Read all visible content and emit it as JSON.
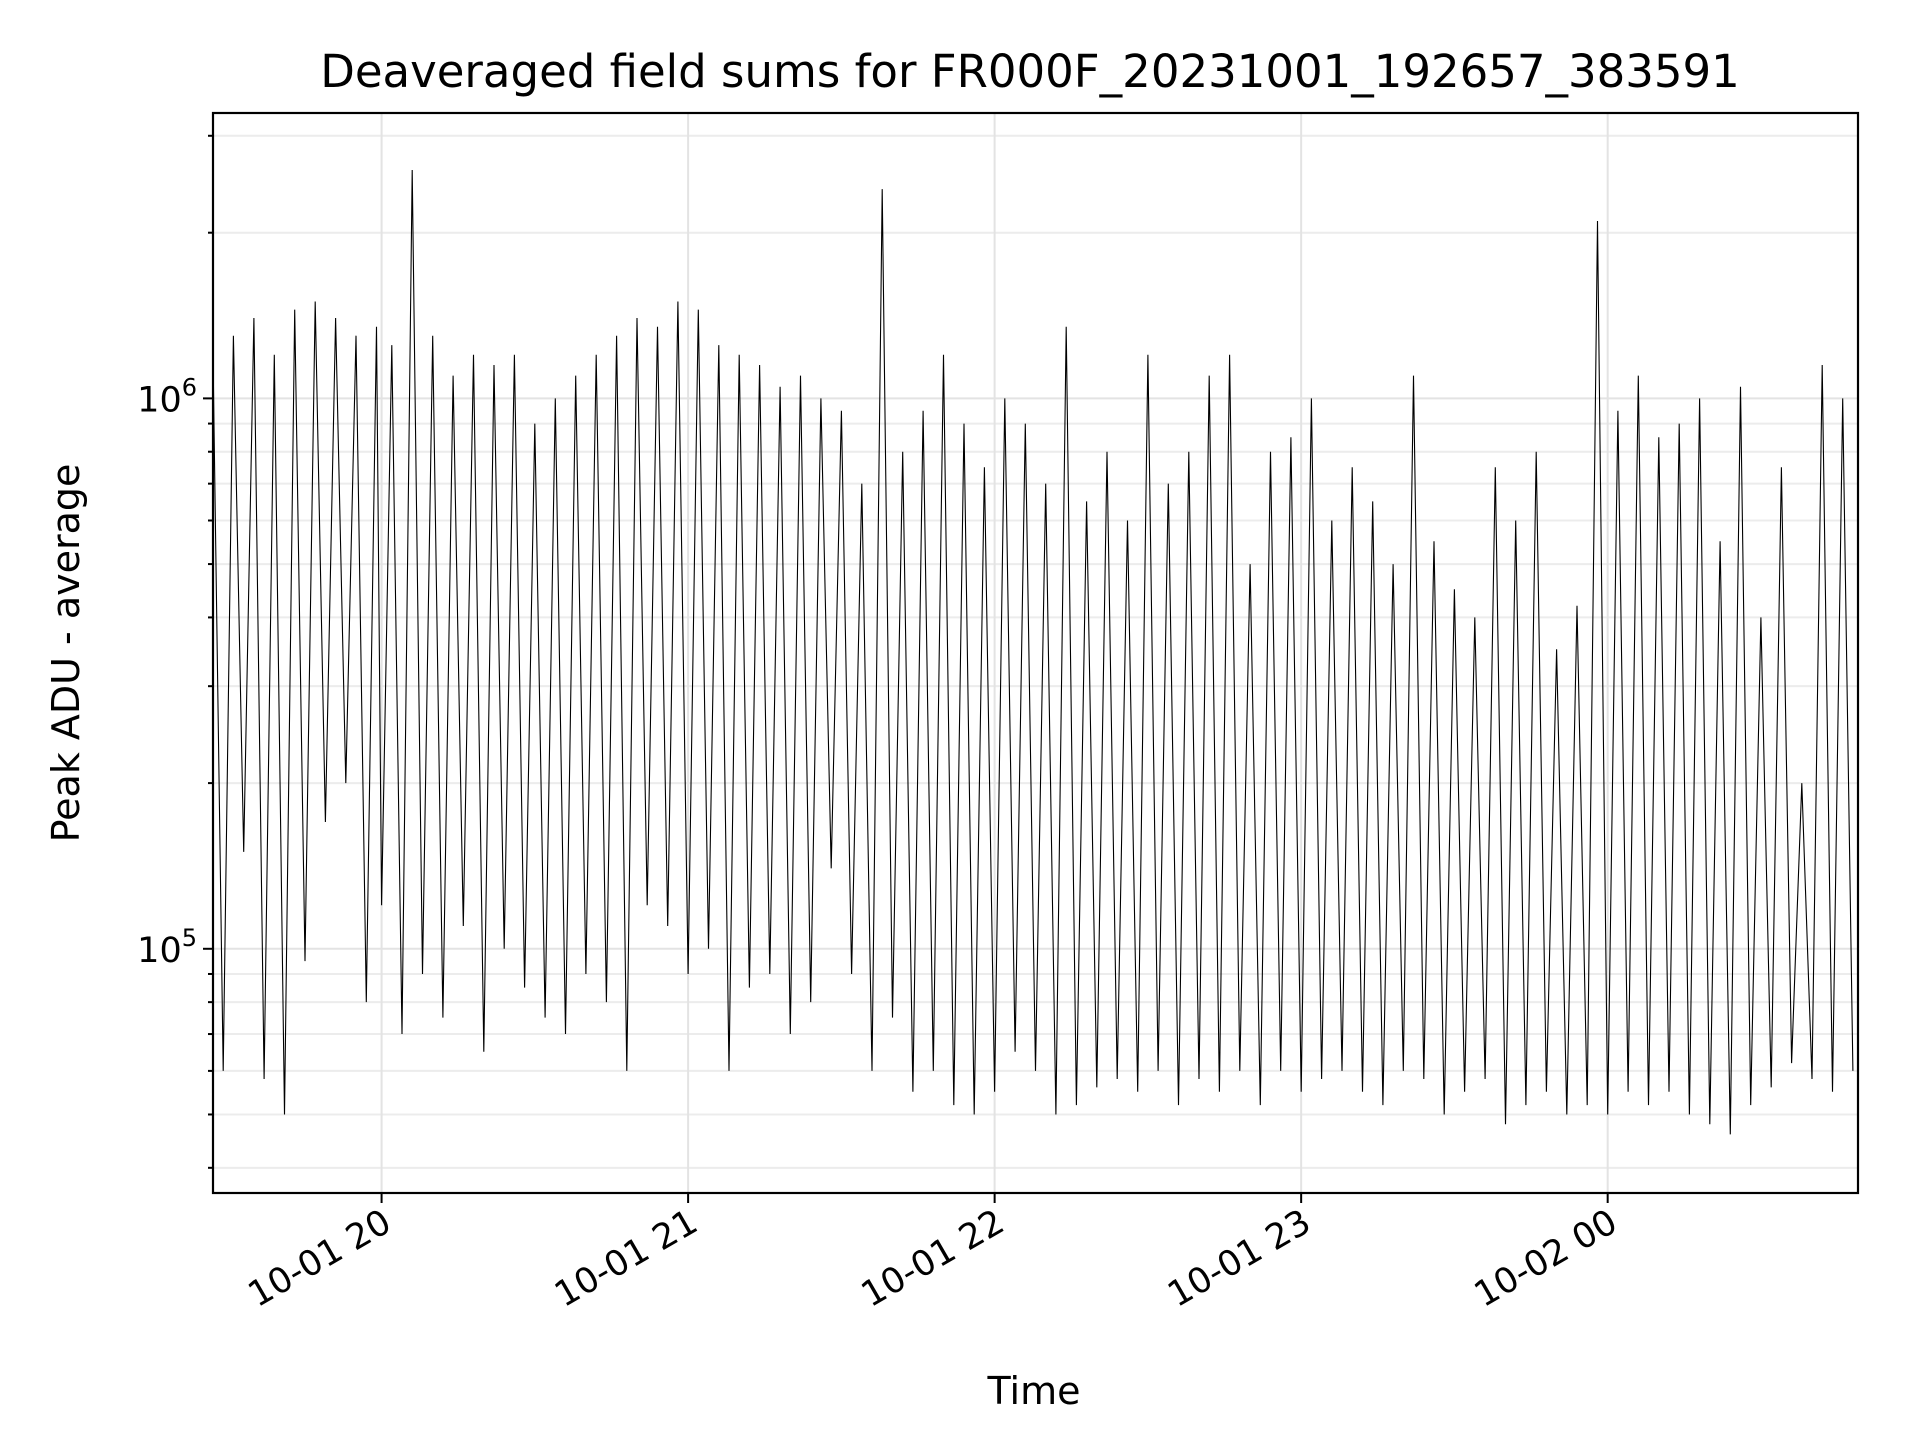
{
  "chart_data": {
    "type": "line",
    "title": "Deaveraged field sums for FR000F_20231001_192657_383591",
    "xlabel": "Time",
    "ylabel": "Peak ADU - average",
    "yscale": "log",
    "grid": true,
    "xlim": [
      "2023-10-01 19:27",
      "2023-10-02 00:49"
    ],
    "ylim": [
      36000,
      3300000
    ],
    "xticks": [
      {
        "value": "2023-10-01 20:00",
        "label": "10-01 20"
      },
      {
        "value": "2023-10-01 21:00",
        "label": "10-01 21"
      },
      {
        "value": "2023-10-01 22:00",
        "label": "10-01 22"
      },
      {
        "value": "2023-10-01 23:00",
        "label": "10-01 23"
      },
      {
        "value": "2023-10-02 00:00",
        "label": "10-02 00"
      }
    ],
    "yticks": [
      {
        "value": 100000,
        "base": "10",
        "exp": "5"
      },
      {
        "value": 1000000,
        "base": "10",
        "exp": "6"
      }
    ],
    "line_color": "#000000",
    "series": [
      {
        "x": [
          "2023-10-01 19:27",
          "2023-10-01 19:29",
          "2023-10-01 19:31",
          "2023-10-01 19:33",
          "2023-10-01 19:35",
          "2023-10-01 19:37",
          "2023-10-01 19:39",
          "2023-10-01 19:41",
          "2023-10-01 19:43",
          "2023-10-01 19:45",
          "2023-10-01 19:47",
          "2023-10-01 19:49",
          "2023-10-01 19:51",
          "2023-10-01 19:53",
          "2023-10-01 19:55",
          "2023-10-01 19:57",
          "2023-10-01 19:59",
          "2023-10-01 20:00",
          "2023-10-01 20:02",
          "2023-10-01 20:04",
          "2023-10-01 20:06",
          "2023-10-01 20:08",
          "2023-10-01 20:10",
          "2023-10-01 20:12",
          "2023-10-01 20:14",
          "2023-10-01 20:16",
          "2023-10-01 20:18",
          "2023-10-01 20:20",
          "2023-10-01 20:22",
          "2023-10-01 20:24",
          "2023-10-01 20:26",
          "2023-10-01 20:28",
          "2023-10-01 20:30",
          "2023-10-01 20:32",
          "2023-10-01 20:34",
          "2023-10-01 20:36",
          "2023-10-01 20:38",
          "2023-10-01 20:40",
          "2023-10-01 20:42",
          "2023-10-01 20:44",
          "2023-10-01 20:46",
          "2023-10-01 20:48",
          "2023-10-01 20:50",
          "2023-10-01 20:52",
          "2023-10-01 20:54",
          "2023-10-01 20:56",
          "2023-10-01 20:58",
          "2023-10-01 21:00",
          "2023-10-01 21:02",
          "2023-10-01 21:04",
          "2023-10-01 21:06",
          "2023-10-01 21:08",
          "2023-10-01 21:10",
          "2023-10-01 21:12",
          "2023-10-01 21:14",
          "2023-10-01 21:16",
          "2023-10-01 21:18",
          "2023-10-01 21:20",
          "2023-10-01 21:22",
          "2023-10-01 21:24",
          "2023-10-01 21:26",
          "2023-10-01 21:28",
          "2023-10-01 21:30",
          "2023-10-01 21:32",
          "2023-10-01 21:34",
          "2023-10-01 21:36",
          "2023-10-01 21:38",
          "2023-10-01 21:40",
          "2023-10-01 21:42",
          "2023-10-01 21:44",
          "2023-10-01 21:46",
          "2023-10-01 21:48",
          "2023-10-01 21:50",
          "2023-10-01 21:52",
          "2023-10-01 21:54",
          "2023-10-01 21:56",
          "2023-10-01 21:58",
          "2023-10-01 22:00",
          "2023-10-01 22:02",
          "2023-10-01 22:04",
          "2023-10-01 22:06",
          "2023-10-01 22:08",
          "2023-10-01 22:10",
          "2023-10-01 22:12",
          "2023-10-01 22:14",
          "2023-10-01 22:16",
          "2023-10-01 22:18",
          "2023-10-01 22:20",
          "2023-10-01 22:22",
          "2023-10-01 22:24",
          "2023-10-01 22:26",
          "2023-10-01 22:28",
          "2023-10-01 22:30",
          "2023-10-01 22:32",
          "2023-10-01 22:34",
          "2023-10-01 22:36",
          "2023-10-01 22:38",
          "2023-10-01 22:40",
          "2023-10-01 22:42",
          "2023-10-01 22:44",
          "2023-10-01 22:46",
          "2023-10-01 22:48",
          "2023-10-01 22:50",
          "2023-10-01 22:52",
          "2023-10-01 22:54",
          "2023-10-01 22:56",
          "2023-10-01 22:58",
          "2023-10-01 23:00",
          "2023-10-01 23:02",
          "2023-10-01 23:04",
          "2023-10-01 23:06",
          "2023-10-01 23:08",
          "2023-10-01 23:10",
          "2023-10-01 23:12",
          "2023-10-01 23:14",
          "2023-10-01 23:16",
          "2023-10-01 23:18",
          "2023-10-01 23:20",
          "2023-10-01 23:22",
          "2023-10-01 23:24",
          "2023-10-01 23:26",
          "2023-10-01 23:28",
          "2023-10-01 23:30",
          "2023-10-01 23:32",
          "2023-10-01 23:34",
          "2023-10-01 23:36",
          "2023-10-01 23:38",
          "2023-10-01 23:40",
          "2023-10-01 23:42",
          "2023-10-01 23:44",
          "2023-10-01 23:46",
          "2023-10-01 23:48",
          "2023-10-01 23:50",
          "2023-10-01 23:52",
          "2023-10-01 23:54",
          "2023-10-01 23:56",
          "2023-10-01 23:58",
          "2023-10-02 00:00",
          "2023-10-02 00:02",
          "2023-10-02 00:04",
          "2023-10-02 00:06",
          "2023-10-02 00:08",
          "2023-10-02 00:10",
          "2023-10-02 00:12",
          "2023-10-02 00:14",
          "2023-10-02 00:16",
          "2023-10-02 00:18",
          "2023-10-02 00:20",
          "2023-10-02 00:22",
          "2023-10-02 00:24",
          "2023-10-02 00:26",
          "2023-10-02 00:28",
          "2023-10-02 00:30",
          "2023-10-02 00:32",
          "2023-10-02 00:34",
          "2023-10-02 00:36",
          "2023-10-02 00:38",
          "2023-10-02 00:40",
          "2023-10-02 00:42",
          "2023-10-02 00:44",
          "2023-10-02 00:46",
          "2023-10-02 00:48"
        ],
        "y": [
          1200000,
          60000,
          1300000,
          150000,
          1400000,
          58000,
          1200000,
          50000,
          1450000,
          95000,
          1500000,
          170000,
          1400000,
          200000,
          1300000,
          80000,
          1350000,
          120000,
          1250000,
          70000,
          2600000,
          90000,
          1300000,
          75000,
          1100000,
          110000,
          1200000,
          65000,
          1150000,
          100000,
          1200000,
          85000,
          900000,
          75000,
          1000000,
          70000,
          1100000,
          90000,
          1200000,
          80000,
          1300000,
          60000,
          1400000,
          120000,
          1350000,
          110000,
          1500000,
          90000,
          1450000,
          100000,
          1250000,
          60000,
          1200000,
          85000,
          1150000,
          90000,
          1050000,
          70000,
          1100000,
          80000,
          1000000,
          140000,
          950000,
          90000,
          700000,
          60000,
          2400000,
          75000,
          800000,
          55000,
          950000,
          60000,
          1200000,
          52000,
          900000,
          50000,
          750000,
          55000,
          1000000,
          65000,
          900000,
          60000,
          700000,
          50000,
          1350000,
          52000,
          650000,
          56000,
          800000,
          58000,
          600000,
          55000,
          1200000,
          60000,
          700000,
          52000,
          800000,
          58000,
          1100000,
          55000,
          1200000,
          60000,
          500000,
          52000,
          800000,
          60000,
          850000,
          55000,
          1000000,
          58000,
          600000,
          60000,
          750000,
          55000,
          650000,
          52000,
          500000,
          60000,
          1100000,
          58000,
          550000,
          50000,
          450000,
          55000,
          400000,
          58000,
          750000,
          48000,
          600000,
          52000,
          800000,
          55000,
          350000,
          50000,
          420000,
          52000,
          2100000,
          50000,
          950000,
          55000,
          1100000,
          52000,
          850000,
          55000,
          900000,
          50000,
          1000000,
          48000,
          550000,
          46000,
          1050000,
          52000,
          400000,
          56000,
          750000,
          62000,
          200000,
          58000,
          1150000,
          55000,
          1000000,
          60000
        ]
      }
    ]
  }
}
